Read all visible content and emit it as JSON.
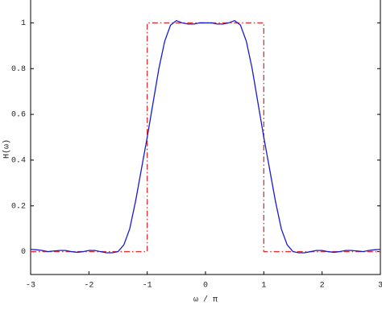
{
  "chart_data": {
    "type": "line",
    "xlabel": "ω / π",
    "ylabel": "H(ω)",
    "xlim": [
      -3,
      3
    ],
    "ylim": [
      -0.1,
      1.1
    ],
    "xticks": [
      -3,
      -2,
      -1,
      0,
      1,
      2,
      3
    ],
    "yticks": [
      0,
      0.2,
      0.4,
      0.6,
      0.8,
      1
    ],
    "grid": false,
    "series": [
      {
        "color": "#e03030",
        "dash": "dash-dot",
        "x": [
          -3,
          -1,
          -1,
          1,
          1,
          3
        ],
        "values": [
          0,
          0,
          1,
          1,
          0,
          0
        ]
      },
      {
        "color": "#1a1ad0",
        "dash": "solid",
        "x": [
          -3,
          -2.9,
          -2.8,
          -2.7,
          -2.6,
          -2.5,
          -2.4,
          -2.3,
          -2.2,
          -2.1,
          -2,
          -1.9,
          -1.8,
          -1.7,
          -1.6,
          -1.5,
          -1.4,
          -1.3,
          -1.2,
          -1.1,
          -1,
          -0.9,
          -0.8,
          -0.7,
          -0.6,
          -0.5,
          -0.4,
          -0.3,
          -0.2,
          -0.1,
          0,
          0.1,
          0.2,
          0.3,
          0.4,
          0.5,
          0.6,
          0.7,
          0.8,
          0.9,
          1,
          1.1,
          1.2,
          1.3,
          1.4,
          1.5,
          1.6,
          1.7,
          1.8,
          1.9,
          2,
          2.1,
          2.2,
          2.3,
          2.4,
          2.5,
          2.6,
          2.7,
          2.8,
          2.9,
          3
        ],
        "values": [
          0.01,
          0.008,
          0.005,
          0,
          0.003,
          0.005,
          0.005,
          0,
          -0.003,
          0,
          0.005,
          0.005,
          0,
          -0.005,
          -0.005,
          0,
          0.03,
          0.1,
          0.22,
          0.36,
          0.5,
          0.65,
          0.8,
          0.92,
          0.99,
          1.01,
          1,
          0.995,
          0.995,
          1,
          1,
          1,
          0.995,
          0.995,
          1,
          1.01,
          0.99,
          0.92,
          0.8,
          0.65,
          0.5,
          0.36,
          0.22,
          0.1,
          0.03,
          0,
          -0.005,
          -0.005,
          0,
          0.005,
          0.005,
          0,
          -0.003,
          0,
          0.005,
          0.005,
          0.003,
          0,
          0.005,
          0.008,
          0.01
        ]
      }
    ]
  }
}
